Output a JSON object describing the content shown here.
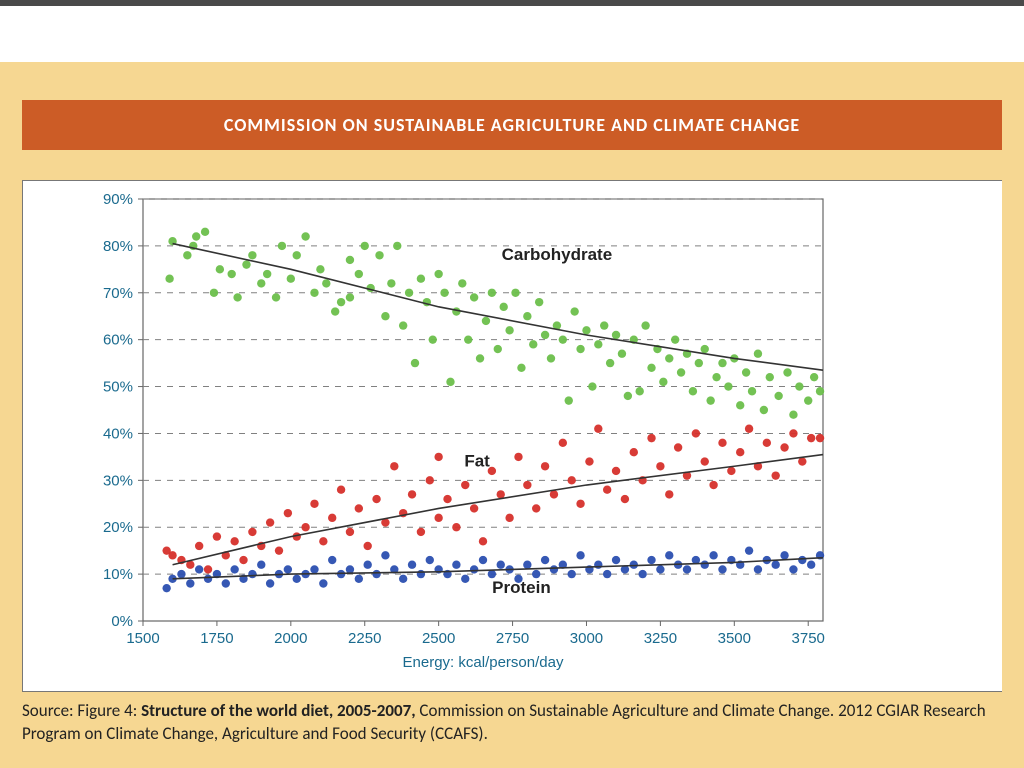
{
  "slide": {
    "background_color": "#f6d792",
    "top_rule_color": "#4a4a4a"
  },
  "banner": {
    "text": "COMMISSION ON SUSTAINABLE AGRICULTURE AND CLIMATE CHANGE",
    "bg_color": "#cc5c26",
    "text_color": "#ffffff",
    "fontsize": 18
  },
  "chart": {
    "type": "scatter",
    "background_color": "#ffffff",
    "axis_color": "#666666",
    "grid_color": "#808080",
    "grid_dash": "6,6",
    "tick_label_color": "#1a6a8e",
    "axis_label_color": "#1a6a8e",
    "series_label_color": "#222222",
    "trend_line_color": "#333333",
    "marker_radius": 4.2,
    "tick_fontsize": 15,
    "axis_label_fontsize": 15,
    "series_label_fontsize": 17,
    "xlabel": "Energy: kcal/person/day",
    "xlim": [
      1500,
      3800
    ],
    "xticks": [
      1500,
      1750,
      2000,
      2250,
      2500,
      2750,
      3000,
      3250,
      3500,
      3750
    ],
    "ylim": [
      0,
      90
    ],
    "yticks": [
      0,
      10,
      20,
      30,
      40,
      50,
      60,
      70,
      80,
      90
    ],
    "ytick_labels": [
      "0%",
      "10%",
      "20%",
      "30%",
      "40%",
      "50%",
      "60%",
      "70%",
      "80%",
      "90%"
    ],
    "series": {
      "carbohydrate": {
        "label": "Carbohydrate",
        "label_pos": [
          2900,
          77
        ],
        "color": "#6cbf4b",
        "trend": [
          [
            1600,
            80.5
          ],
          [
            2000,
            75
          ],
          [
            2500,
            67
          ],
          [
            3000,
            61
          ],
          [
            3500,
            56
          ],
          [
            3800,
            53.5
          ]
        ],
        "points": [
          [
            1590,
            73
          ],
          [
            1600,
            81
          ],
          [
            1650,
            78
          ],
          [
            1670,
            80
          ],
          [
            1680,
            82
          ],
          [
            1710,
            83
          ],
          [
            1740,
            70
          ],
          [
            1760,
            75
          ],
          [
            1800,
            74
          ],
          [
            1820,
            69
          ],
          [
            1850,
            76
          ],
          [
            1870,
            78
          ],
          [
            1900,
            72
          ],
          [
            1920,
            74
          ],
          [
            1950,
            69
          ],
          [
            1970,
            80
          ],
          [
            2000,
            73
          ],
          [
            2020,
            78
          ],
          [
            2050,
            82
          ],
          [
            2080,
            70
          ],
          [
            2100,
            75
          ],
          [
            2120,
            72
          ],
          [
            2150,
            66
          ],
          [
            2170,
            68
          ],
          [
            2200,
            69
          ],
          [
            2200,
            77
          ],
          [
            2230,
            74
          ],
          [
            2250,
            80
          ],
          [
            2270,
            71
          ],
          [
            2300,
            78
          ],
          [
            2320,
            65
          ],
          [
            2340,
            72
          ],
          [
            2360,
            80
          ],
          [
            2380,
            63
          ],
          [
            2400,
            70
          ],
          [
            2420,
            55
          ],
          [
            2440,
            73
          ],
          [
            2460,
            68
          ],
          [
            2480,
            60
          ],
          [
            2500,
            74
          ],
          [
            2520,
            70
          ],
          [
            2540,
            51
          ],
          [
            2560,
            66
          ],
          [
            2580,
            72
          ],
          [
            2600,
            60
          ],
          [
            2620,
            69
          ],
          [
            2640,
            56
          ],
          [
            2660,
            64
          ],
          [
            2680,
            70
          ],
          [
            2700,
            58
          ],
          [
            2720,
            67
          ],
          [
            2740,
            62
          ],
          [
            2760,
            70
          ],
          [
            2780,
            54
          ],
          [
            2800,
            65
          ],
          [
            2820,
            59
          ],
          [
            2840,
            68
          ],
          [
            2860,
            61
          ],
          [
            2880,
            56
          ],
          [
            2900,
            63
          ],
          [
            2920,
            60
          ],
          [
            2940,
            47
          ],
          [
            2960,
            66
          ],
          [
            2980,
            58
          ],
          [
            3000,
            62
          ],
          [
            3020,
            50
          ],
          [
            3040,
            59
          ],
          [
            3060,
            63
          ],
          [
            3080,
            55
          ],
          [
            3100,
            61
          ],
          [
            3120,
            57
          ],
          [
            3140,
            48
          ],
          [
            3160,
            60
          ],
          [
            3180,
            49
          ],
          [
            3200,
            63
          ],
          [
            3220,
            54
          ],
          [
            3240,
            58
          ],
          [
            3260,
            51
          ],
          [
            3280,
            56
          ],
          [
            3300,
            60
          ],
          [
            3320,
            53
          ],
          [
            3340,
            57
          ],
          [
            3360,
            49
          ],
          [
            3380,
            55
          ],
          [
            3400,
            58
          ],
          [
            3420,
            47
          ],
          [
            3440,
            52
          ],
          [
            3460,
            55
          ],
          [
            3480,
            50
          ],
          [
            3500,
            56
          ],
          [
            3520,
            46
          ],
          [
            3540,
            53
          ],
          [
            3560,
            49
          ],
          [
            3580,
            57
          ],
          [
            3600,
            45
          ],
          [
            3620,
            52
          ],
          [
            3650,
            48
          ],
          [
            3680,
            53
          ],
          [
            3700,
            44
          ],
          [
            3720,
            50
          ],
          [
            3750,
            47
          ],
          [
            3770,
            52
          ],
          [
            3790,
            49
          ]
        ]
      },
      "fat": {
        "label": "Fat",
        "label_pos": [
          2630,
          33
        ],
        "color": "#d6302b",
        "trend": [
          [
            1600,
            12
          ],
          [
            2000,
            18
          ],
          [
            2500,
            24
          ],
          [
            3000,
            29
          ],
          [
            3500,
            33
          ],
          [
            3800,
            35.5
          ]
        ],
        "points": [
          [
            1580,
            15
          ],
          [
            1600,
            14
          ],
          [
            1630,
            13
          ],
          [
            1660,
            12
          ],
          [
            1690,
            16
          ],
          [
            1720,
            11
          ],
          [
            1750,
            18
          ],
          [
            1780,
            14
          ],
          [
            1810,
            17
          ],
          [
            1840,
            13
          ],
          [
            1870,
            19
          ],
          [
            1900,
            16
          ],
          [
            1930,
            21
          ],
          [
            1960,
            15
          ],
          [
            1990,
            23
          ],
          [
            2020,
            18
          ],
          [
            2050,
            20
          ],
          [
            2080,
            25
          ],
          [
            2110,
            17
          ],
          [
            2140,
            22
          ],
          [
            2170,
            28
          ],
          [
            2200,
            19
          ],
          [
            2230,
            24
          ],
          [
            2260,
            16
          ],
          [
            2290,
            26
          ],
          [
            2320,
            21
          ],
          [
            2350,
            33
          ],
          [
            2380,
            23
          ],
          [
            2410,
            27
          ],
          [
            2440,
            19
          ],
          [
            2470,
            30
          ],
          [
            2500,
            22
          ],
          [
            2500,
            35
          ],
          [
            2530,
            26
          ],
          [
            2560,
            20
          ],
          [
            2590,
            29
          ],
          [
            2620,
            24
          ],
          [
            2650,
            17
          ],
          [
            2680,
            32
          ],
          [
            2710,
            27
          ],
          [
            2740,
            22
          ],
          [
            2770,
            35
          ],
          [
            2800,
            29
          ],
          [
            2830,
            24
          ],
          [
            2860,
            33
          ],
          [
            2890,
            27
          ],
          [
            2920,
            38
          ],
          [
            2950,
            30
          ],
          [
            2980,
            25
          ],
          [
            3010,
            34
          ],
          [
            3040,
            41
          ],
          [
            3070,
            28
          ],
          [
            3100,
            32
          ],
          [
            3130,
            26
          ],
          [
            3160,
            36
          ],
          [
            3190,
            30
          ],
          [
            3220,
            39
          ],
          [
            3250,
            33
          ],
          [
            3280,
            27
          ],
          [
            3310,
            37
          ],
          [
            3340,
            31
          ],
          [
            3370,
            40
          ],
          [
            3400,
            34
          ],
          [
            3430,
            29
          ],
          [
            3460,
            38
          ],
          [
            3490,
            32
          ],
          [
            3520,
            36
          ],
          [
            3550,
            41
          ],
          [
            3580,
            33
          ],
          [
            3610,
            38
          ],
          [
            3640,
            31
          ],
          [
            3670,
            37
          ],
          [
            3700,
            40
          ],
          [
            3730,
            34
          ],
          [
            3760,
            39
          ],
          [
            3790,
            39
          ]
        ]
      },
      "protein": {
        "label": "Protein",
        "label_pos": [
          2780,
          6
        ],
        "color": "#2b4fb0",
        "trend": [
          [
            1600,
            9
          ],
          [
            2000,
            10
          ],
          [
            2500,
            10.5
          ],
          [
            3000,
            11.5
          ],
          [
            3500,
            12.5
          ],
          [
            3800,
            13.5
          ]
        ],
        "points": [
          [
            1580,
            7
          ],
          [
            1600,
            9
          ],
          [
            1630,
            10
          ],
          [
            1660,
            8
          ],
          [
            1690,
            11
          ],
          [
            1720,
            9
          ],
          [
            1750,
            10
          ],
          [
            1780,
            8
          ],
          [
            1810,
            11
          ],
          [
            1840,
            9
          ],
          [
            1870,
            10
          ],
          [
            1900,
            12
          ],
          [
            1930,
            8
          ],
          [
            1960,
            10
          ],
          [
            1990,
            11
          ],
          [
            2020,
            9
          ],
          [
            2050,
            10
          ],
          [
            2080,
            11
          ],
          [
            2110,
            8
          ],
          [
            2140,
            13
          ],
          [
            2170,
            10
          ],
          [
            2200,
            11
          ],
          [
            2230,
            9
          ],
          [
            2260,
            12
          ],
          [
            2290,
            10
          ],
          [
            2320,
            14
          ],
          [
            2350,
            11
          ],
          [
            2380,
            9
          ],
          [
            2410,
            12
          ],
          [
            2440,
            10
          ],
          [
            2470,
            13
          ],
          [
            2500,
            11
          ],
          [
            2530,
            10
          ],
          [
            2560,
            12
          ],
          [
            2590,
            9
          ],
          [
            2620,
            11
          ],
          [
            2650,
            13
          ],
          [
            2680,
            10
          ],
          [
            2710,
            12
          ],
          [
            2740,
            11
          ],
          [
            2770,
            9
          ],
          [
            2800,
            12
          ],
          [
            2830,
            10
          ],
          [
            2860,
            13
          ],
          [
            2890,
            11
          ],
          [
            2920,
            12
          ],
          [
            2950,
            10
          ],
          [
            2980,
            14
          ],
          [
            3010,
            11
          ],
          [
            3040,
            12
          ],
          [
            3070,
            10
          ],
          [
            3100,
            13
          ],
          [
            3130,
            11
          ],
          [
            3160,
            12
          ],
          [
            3190,
            10
          ],
          [
            3220,
            13
          ],
          [
            3250,
            11
          ],
          [
            3280,
            14
          ],
          [
            3310,
            12
          ],
          [
            3340,
            11
          ],
          [
            3370,
            13
          ],
          [
            3400,
            12
          ],
          [
            3430,
            14
          ],
          [
            3460,
            11
          ],
          [
            3490,
            13
          ],
          [
            3520,
            12
          ],
          [
            3550,
            15
          ],
          [
            3580,
            11
          ],
          [
            3610,
            13
          ],
          [
            3640,
            12
          ],
          [
            3670,
            14
          ],
          [
            3700,
            11
          ],
          [
            3730,
            13
          ],
          [
            3760,
            12
          ],
          [
            3790,
            14
          ]
        ]
      }
    }
  },
  "caption": {
    "prefix": "Source: Figure 4: ",
    "bold": "Structure of the world diet, 2005-2007, ",
    "rest": "Commission on Sustainable Agriculture and  Climate Change. 2012 CGIAR Research Program on Climate Change, Agriculture and Food Security (CCAFS).",
    "fontsize": 17
  }
}
